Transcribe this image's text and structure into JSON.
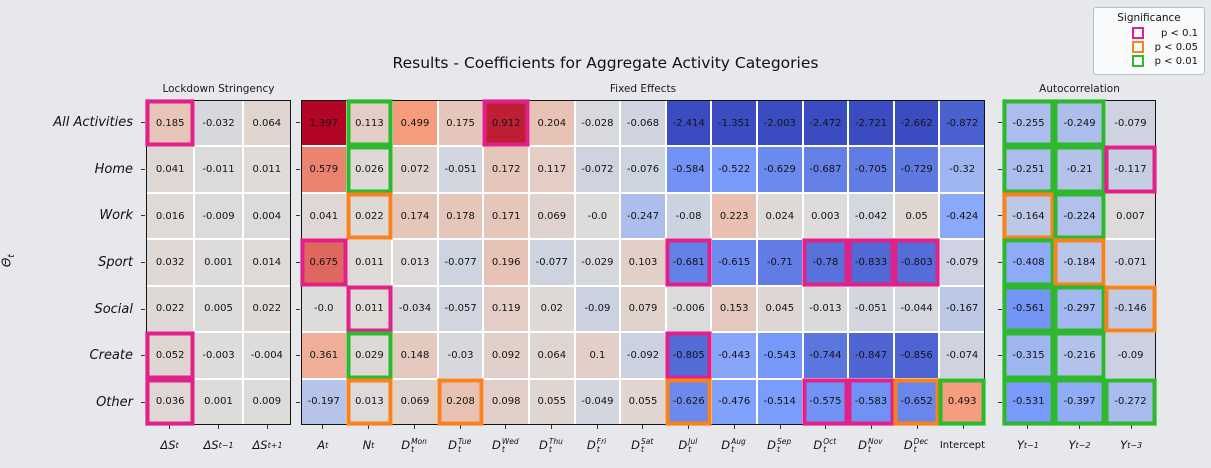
{
  "chart_data": {
    "type": "heatmap",
    "title": "Results - Coefficients for Aggregate Activity Categories",
    "ylabel": {
      "base": "Θ",
      "sub": "t"
    },
    "rows": [
      "All Activities",
      "Home",
      "Work",
      "Sport",
      "Social",
      "Create",
      "Other"
    ],
    "colormap": "coolwarm",
    "color_norm": [
      -1,
      1
    ],
    "legend": {
      "title": "Significance",
      "entries": [
        {
          "code": 1,
          "label": "p < 0.1",
          "color": "#e0218a"
        },
        {
          "code": 2,
          "label": "p < 0.05",
          "color": "#f7821e"
        },
        {
          "code": 3,
          "label": "p < 0.01",
          "color": "#2db82d"
        }
      ]
    },
    "panels": [
      {
        "title": "Lockdown Stringency",
        "columns": [
          {
            "base": "ΔS",
            "sub": "t"
          },
          {
            "base": "ΔS",
            "sub": "t−1"
          },
          {
            "base": "ΔS",
            "sub": "t+1"
          }
        ],
        "values": [
          [
            "0.185",
            "-0.032",
            "0.064"
          ],
          [
            "0.041",
            "-0.011",
            "0.011"
          ],
          [
            "0.016",
            "-0.009",
            "0.004"
          ],
          [
            "0.032",
            "0.001",
            "0.014"
          ],
          [
            "0.022",
            "0.005",
            "0.022"
          ],
          [
            "0.052",
            "-0.003",
            "-0.004"
          ],
          [
            "0.036",
            "0.001",
            "0.009"
          ]
        ],
        "sig": [
          [
            1,
            0,
            0
          ],
          [
            0,
            0,
            0
          ],
          [
            0,
            0,
            0
          ],
          [
            0,
            0,
            0
          ],
          [
            0,
            0,
            0
          ],
          [
            1,
            0,
            0
          ],
          [
            1,
            0,
            0
          ]
        ]
      },
      {
        "title": "Fixed Effects",
        "columns": [
          {
            "base": "A",
            "sub": "t"
          },
          {
            "base": "N",
            "sub": "t"
          },
          {
            "base": "D",
            "sub": "t",
            "sup": "Mon"
          },
          {
            "base": "D",
            "sub": "t",
            "sup": "Tue"
          },
          {
            "base": "D",
            "sub": "t",
            "sup": "Wed"
          },
          {
            "base": "D",
            "sub": "t",
            "sup": "Thu"
          },
          {
            "base": "D",
            "sub": "t",
            "sup": "Fri"
          },
          {
            "base": "D",
            "sub": "t",
            "sup": "Sat"
          },
          {
            "base": "D",
            "sub": "t",
            "sup": "Jul"
          },
          {
            "base": "D",
            "sub": "t",
            "sup": "Aug"
          },
          {
            "base": "D",
            "sub": "t",
            "sup": "Sep"
          },
          {
            "base": "D",
            "sub": "t",
            "sup": "Oct"
          },
          {
            "base": "D",
            "sub": "t",
            "sup": "Nov"
          },
          {
            "base": "D",
            "sub": "t",
            "sup": "Dec"
          },
          {
            "base": "Intercept",
            "plain": true
          }
        ],
        "values": [
          [
            "1.397",
            "0.113",
            "0.499",
            "0.175",
            "0.912",
            "0.204",
            "-0.028",
            "-0.068",
            "-2.414",
            "-1.351",
            "-2.003",
            "-2.472",
            "-2.721",
            "-2.662",
            "-0.872"
          ],
          [
            "0.579",
            "0.026",
            "0.072",
            "-0.051",
            "0.172",
            "0.117",
            "-0.072",
            "-0.076",
            "-0.584",
            "-0.522",
            "-0.629",
            "-0.687",
            "-0.705",
            "-0.729",
            "-0.32"
          ],
          [
            "0.041",
            "0.022",
            "0.174",
            "0.178",
            "0.171",
            "0.069",
            "-0.0",
            "-0.247",
            "-0.08",
            "0.223",
            "0.024",
            "0.003",
            "-0.042",
            "0.05",
            "-0.424"
          ],
          [
            "0.675",
            "0.011",
            "0.013",
            "-0.077",
            "0.196",
            "-0.077",
            "-0.029",
            "0.103",
            "-0.681",
            "-0.615",
            "-0.71",
            "-0.78",
            "-0.833",
            "-0.803",
            "-0.079"
          ],
          [
            "-0.0",
            "0.011",
            "-0.034",
            "-0.057",
            "0.119",
            "0.02",
            "-0.09",
            "0.079",
            "-0.006",
            "0.153",
            "0.045",
            "-0.013",
            "-0.051",
            "-0.044",
            "-0.167"
          ],
          [
            "0.361",
            "0.029",
            "0.148",
            "-0.03",
            "0.092",
            "0.064",
            "0.1",
            "-0.092",
            "-0.805",
            "-0.443",
            "-0.543",
            "-0.744",
            "-0.847",
            "-0.856",
            "-0.074"
          ],
          [
            "-0.197",
            "0.013",
            "0.069",
            "0.208",
            "0.098",
            "0.055",
            "-0.049",
            "0.055",
            "-0.626",
            "-0.476",
            "-0.514",
            "-0.575",
            "-0.583",
            "-0.652",
            "0.493"
          ]
        ],
        "sig": [
          [
            0,
            3,
            0,
            0,
            1,
            0,
            0,
            0,
            0,
            0,
            0,
            0,
            0,
            0,
            0
          ],
          [
            0,
            3,
            0,
            0,
            0,
            0,
            0,
            0,
            0,
            0,
            0,
            0,
            0,
            0,
            0
          ],
          [
            0,
            2,
            0,
            0,
            0,
            0,
            0,
            0,
            0,
            0,
            0,
            0,
            0,
            0,
            0
          ],
          [
            1,
            0,
            0,
            0,
            0,
            0,
            0,
            0,
            1,
            0,
            0,
            1,
            1,
            1,
            0
          ],
          [
            0,
            1,
            0,
            0,
            0,
            0,
            0,
            0,
            0,
            0,
            0,
            0,
            0,
            0,
            0
          ],
          [
            0,
            3,
            0,
            0,
            0,
            0,
            0,
            0,
            1,
            0,
            0,
            0,
            0,
            0,
            0
          ],
          [
            0,
            2,
            0,
            2,
            0,
            0,
            0,
            0,
            2,
            0,
            0,
            1,
            1,
            2,
            3
          ]
        ]
      },
      {
        "title": "Autocorrelation",
        "columns": [
          {
            "base": "Y",
            "sub": "t−1"
          },
          {
            "base": "Y",
            "sub": "t−2"
          },
          {
            "base": "Y",
            "sub": "t−3"
          }
        ],
        "values": [
          [
            "-0.255",
            "-0.249",
            "-0.079"
          ],
          [
            "-0.251",
            "-0.21",
            "-0.117"
          ],
          [
            "-0.164",
            "-0.224",
            "0.007"
          ],
          [
            "-0.408",
            "-0.184",
            "-0.071"
          ],
          [
            "-0.561",
            "-0.297",
            "-0.146"
          ],
          [
            "-0.315",
            "-0.216",
            "-0.09"
          ],
          [
            "-0.531",
            "-0.397",
            "-0.272"
          ]
        ],
        "sig": [
          [
            3,
            3,
            0
          ],
          [
            3,
            3,
            1
          ],
          [
            2,
            3,
            0
          ],
          [
            3,
            2,
            0
          ],
          [
            3,
            3,
            2
          ],
          [
            3,
            3,
            0
          ],
          [
            3,
            3,
            3
          ]
        ]
      }
    ]
  }
}
